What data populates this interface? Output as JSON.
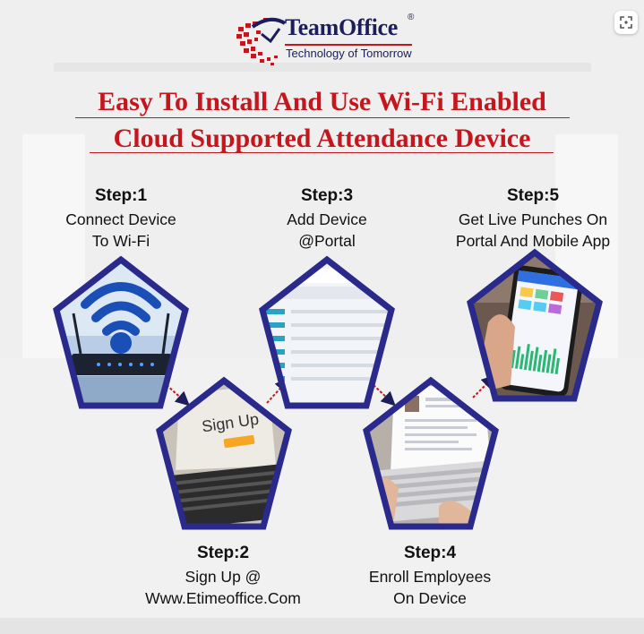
{
  "brand": {
    "name": "TeamOffice",
    "registered": "®",
    "tagline": "Technology of Tomorrow"
  },
  "headline": {
    "line1": "Easy To Install And Use Wi-Fi Enabled",
    "line2": "Cloud Supported Attendance Device"
  },
  "steps": [
    {
      "title": "Step:1",
      "line1": "Connect Device",
      "line2": "To Wi-Fi",
      "image": "wifi-router"
    },
    {
      "title": "Step:2",
      "line1": "Sign Up @",
      "line2": "Www.Etimeoffice.Com",
      "image": "laptop-sign-up"
    },
    {
      "title": "Step:3",
      "line1": "Add Device",
      "line2": "@Portal",
      "image": "portal-table"
    },
    {
      "title": "Step:4",
      "line1": "Enroll Employees",
      "line2": "On Device",
      "image": "laptop-resume"
    },
    {
      "title": "Step:5",
      "line1": "Get Live Punches On",
      "line2": "Portal And Mobile App",
      "image": "mobile-app"
    }
  ],
  "images": {
    "signup_text": "Sign Up"
  },
  "colors": {
    "brand_navy": "#1b1e5a",
    "accent_red": "#c4161c",
    "pentagon_border": "#2a2a8c"
  },
  "icons": {
    "expand": "expand-icon"
  }
}
